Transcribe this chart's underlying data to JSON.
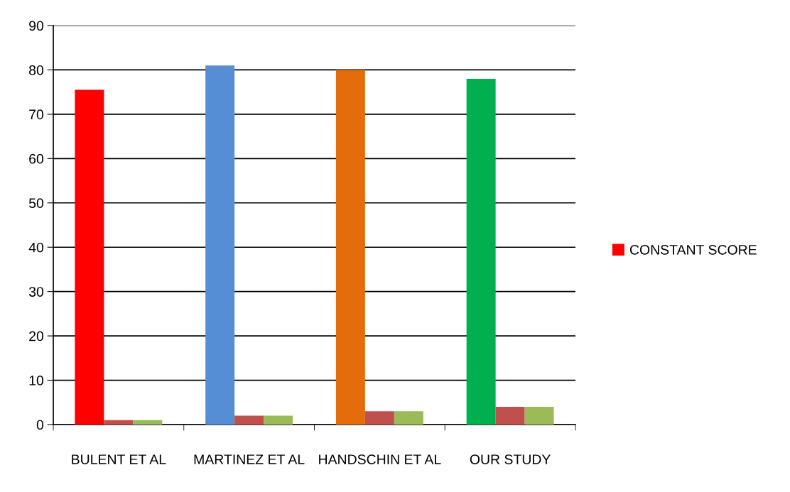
{
  "chart_data": {
    "type": "bar",
    "categories": [
      "BULENT ET AL",
      "MARTINEZ ET AL",
      "HANDSCHIN ET AL",
      "OUR STUDY"
    ],
    "series": [
      {
        "name": "CONSTANT SCORE",
        "colors": [
          "#ff0000",
          "#558ed5",
          "#e46c0a",
          "#00b050"
        ],
        "values": [
          75.5,
          81,
          80,
          78
        ]
      },
      {
        "color": "#c0504d",
        "values": [
          1,
          2,
          3,
          4
        ]
      },
      {
        "color": "#9bbb59",
        "values": [
          1,
          2,
          3,
          4
        ]
      }
    ],
    "ylim": [
      0,
      90
    ],
    "yticks": [
      0,
      10,
      20,
      30,
      40,
      50,
      60,
      70,
      80,
      90
    ],
    "grid": "y",
    "legend": "right"
  }
}
